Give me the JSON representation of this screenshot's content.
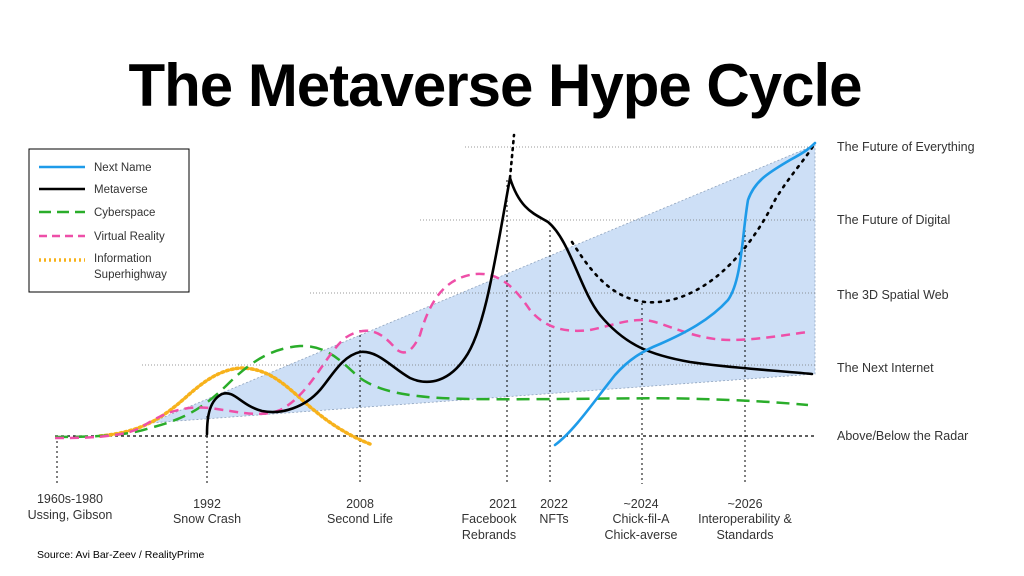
{
  "chart_data": {
    "type": "line",
    "title": "The Metaverse Hype Cycle",
    "source": "Source: Avi Bar-Zeev / RealityPrime",
    "levels": [
      "The Future of Everything",
      "The Future of Digital",
      "The 3D Spatial Web",
      "The Next Internet",
      "Above/Below the Radar"
    ],
    "milestones": [
      {
        "year": "1960s-1980",
        "label": "Ussing, Gibson"
      },
      {
        "year": "1992",
        "label": "Snow Crash"
      },
      {
        "year": "2008",
        "label": "Second Life"
      },
      {
        "year": "2021",
        "label": "Facebook Rebrands"
      },
      {
        "year": "2022",
        "label": "NFTs"
      },
      {
        "year": "~2024",
        "label": "Chick-fil-A Chick-averse"
      },
      {
        "year": "~2026",
        "label": "Interoperability & Standards"
      }
    ],
    "series": [
      {
        "name": "Next Name",
        "color": "#1e9be9",
        "style": "solid"
      },
      {
        "name": "Metaverse",
        "color": "#000000",
        "style": "solid"
      },
      {
        "name": "Cyberspace",
        "color": "#2aad2a",
        "style": "dashed"
      },
      {
        "name": "Virtual Reality",
        "color": "#ee4fa8",
        "style": "dashed"
      },
      {
        "name": "Information Superhighway",
        "color": "#f7b21c",
        "style": "dotted"
      }
    ],
    "cone_fill": "#cddff6"
  }
}
